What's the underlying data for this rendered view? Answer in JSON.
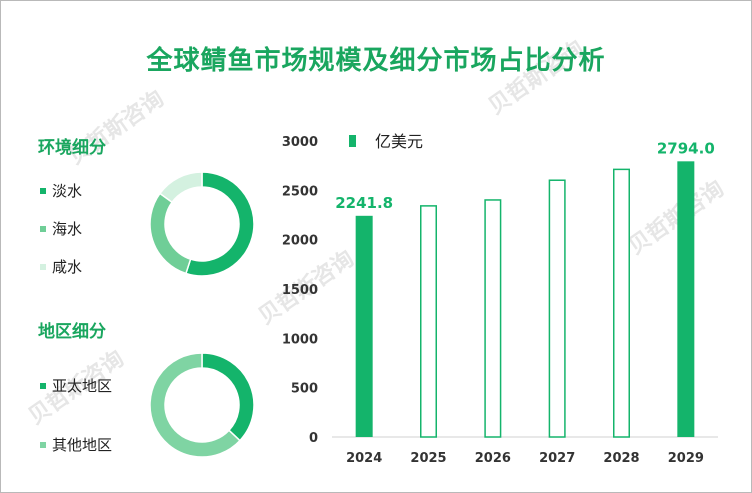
{
  "title": "全球鲭鱼市场规模及细分市场占比分析",
  "watermark": "贝哲斯咨询",
  "environment": {
    "title": "环境细分",
    "items": [
      {
        "label": "淡水",
        "value": 55,
        "color": "#14b46b"
      },
      {
        "label": "海水",
        "value": 30,
        "color": "#6fce97"
      },
      {
        "label": "咸水",
        "value": 15,
        "color": "#d4f1e0"
      }
    ]
  },
  "region": {
    "title": "地区细分",
    "items": [
      {
        "label": "亚太地区",
        "value": 37,
        "color": "#14b46b"
      },
      {
        "label": "其他地区",
        "value": 63,
        "color": "#7fd4a3"
      }
    ]
  },
  "chart_data": {
    "type": "bar",
    "legend": "亿美元",
    "categories": [
      "2024",
      "2025",
      "2026",
      "2027",
      "2028",
      "2029"
    ],
    "values": [
      2241.8,
      2350,
      2410,
      2610,
      2720,
      2794.0
    ],
    "filled": [
      true,
      false,
      false,
      false,
      false,
      true
    ],
    "data_labels": [
      "2241.8",
      "",
      "",
      "",
      "",
      "2794.0"
    ],
    "yticks": [
      "0",
      "500",
      "1000",
      "1500",
      "2000",
      "2500",
      "3000"
    ],
    "ylim": [
      0,
      3000
    ],
    "color": "#14b46b"
  }
}
